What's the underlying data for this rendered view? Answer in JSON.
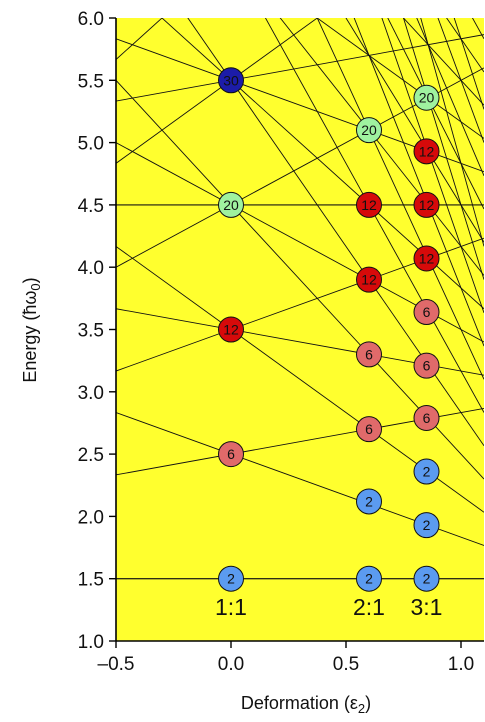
{
  "chart_data": {
    "type": "scatter",
    "title": "",
    "xlabel": "Deformation (ε",
    "xlabel_sub": "2",
    "xlabel_close": ")",
    "ylabel": "Energy (ħω",
    "ylabel_sub": "0",
    "ylabel_close": ")",
    "xlim": [
      -0.5,
      1.1
    ],
    "ylim": [
      1.0,
      6.0
    ],
    "xticks": [
      -0.5,
      0.0,
      0.5,
      1.0
    ],
    "xtick_labels": [
      "–0.5",
      "0.0",
      "0.5",
      "1.0"
    ],
    "yticks": [
      1.0,
      1.5,
      2.0,
      2.5,
      3.0,
      3.5,
      4.0,
      4.5,
      5.0,
      5.5,
      6.0
    ],
    "ytick_labels": [
      "1.0",
      "1.5",
      "2.0",
      "2.5",
      "3.0",
      "3.5",
      "4.0",
      "4.5",
      "5.0",
      "5.5",
      "6.0"
    ],
    "background_color": "#ffff2e",
    "horizontal_levels": [
      1.5,
      4.5
    ],
    "ratio_labels": [
      {
        "text": "1:1",
        "x": 0.0
      },
      {
        "text": "2:1",
        "x": 0.6
      },
      {
        "text": "3:1",
        "x": 0.85
      }
    ],
    "shell_closures": [
      {
        "x": 0.0,
        "y": 1.5,
        "n": "2",
        "color": "#5b9bf0"
      },
      {
        "x": 0.0,
        "y": 2.5,
        "n": "6",
        "color": "#e06a6a"
      },
      {
        "x": 0.0,
        "y": 3.5,
        "n": "12",
        "color": "#d60a0a"
      },
      {
        "x": 0.0,
        "y": 4.5,
        "n": "20",
        "color": "#9ff29f"
      },
      {
        "x": 0.0,
        "y": 5.5,
        "n": "30",
        "color": "#1c1ca8"
      },
      {
        "x": 0.6,
        "y": 1.5,
        "n": "2",
        "color": "#5b9bf0"
      },
      {
        "x": 0.6,
        "y": 2.12,
        "n": "2",
        "color": "#5b9bf0"
      },
      {
        "x": 0.6,
        "y": 2.7,
        "n": "6",
        "color": "#e06a6a"
      },
      {
        "x": 0.6,
        "y": 3.3,
        "n": "6",
        "color": "#e06a6a"
      },
      {
        "x": 0.6,
        "y": 3.9,
        "n": "12",
        "color": "#d60a0a"
      },
      {
        "x": 0.6,
        "y": 4.5,
        "n": "12",
        "color": "#d60a0a"
      },
      {
        "x": 0.6,
        "y": 5.1,
        "n": "20",
        "color": "#9ff29f"
      },
      {
        "x": 0.85,
        "y": 1.5,
        "n": "2",
        "color": "#5b9bf0"
      },
      {
        "x": 0.85,
        "y": 1.93,
        "n": "2",
        "color": "#5b9bf0"
      },
      {
        "x": 0.85,
        "y": 2.36,
        "n": "2",
        "color": "#5b9bf0"
      },
      {
        "x": 0.85,
        "y": 2.79,
        "n": "6",
        "color": "#e06a6a"
      },
      {
        "x": 0.85,
        "y": 3.21,
        "n": "6",
        "color": "#e06a6a"
      },
      {
        "x": 0.85,
        "y": 3.64,
        "n": "6",
        "color": "#e06a6a"
      },
      {
        "x": 0.85,
        "y": 4.07,
        "n": "12",
        "color": "#d60a0a"
      },
      {
        "x": 0.85,
        "y": 4.5,
        "n": "12",
        "color": "#d60a0a"
      },
      {
        "x": 0.85,
        "y": 4.93,
        "n": "12",
        "color": "#d60a0a"
      },
      {
        "x": 0.85,
        "y": 5.36,
        "n": "20",
        "color": "#9ff29f"
      }
    ]
  }
}
